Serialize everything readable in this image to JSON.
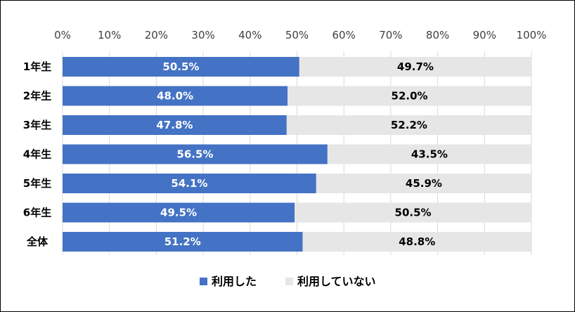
{
  "chart_data": {
    "type": "bar",
    "orientation": "horizontal",
    "stacked": true,
    "categories": [
      "1年生",
      "2年生",
      "3年生",
      "4年生",
      "5年生",
      "6年生",
      "全体"
    ],
    "series": [
      {
        "name": "利用した",
        "values": [
          50.5,
          48.0,
          47.8,
          56.5,
          54.1,
          49.5,
          51.2
        ],
        "color": "#4472c4",
        "label_color": "#ffffff"
      },
      {
        "name": "利用していない",
        "values": [
          49.7,
          52.0,
          52.2,
          43.5,
          45.9,
          50.5,
          48.8
        ],
        "color": "#e7e6e6",
        "label_color": "#000000"
      }
    ],
    "data_labels": [
      [
        "50.5%",
        "48.0%",
        "47.8%",
        "56.5%",
        "54.1%",
        "49.5%",
        "51.2%"
      ],
      [
        "49.7%",
        "52.0%",
        "52.2%",
        "43.5%",
        "45.9%",
        "50.5%",
        "48.8%"
      ]
    ],
    "xaxis": {
      "ticks": [
        0,
        10,
        20,
        30,
        40,
        50,
        60,
        70,
        80,
        90,
        100
      ],
      "tick_labels": [
        "0%",
        "10%",
        "20%",
        "30%",
        "40%",
        "50%",
        "60%",
        "70%",
        "80%",
        "90%",
        "100%"
      ],
      "position": "top"
    },
    "xlim": [
      0,
      100
    ],
    "grid": true,
    "legend_position": "bottom",
    "title": "",
    "xlabel": "",
    "ylabel": ""
  }
}
